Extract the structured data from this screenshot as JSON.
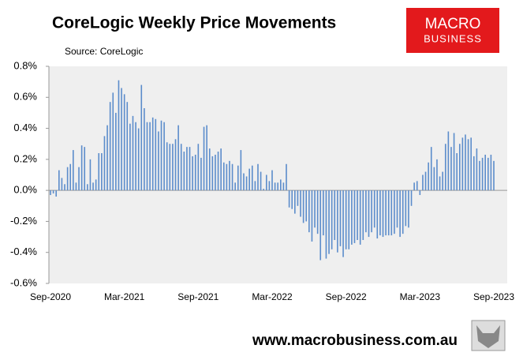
{
  "chart_data": {
    "type": "bar",
    "title": "CoreLogic Weekly Price Movements",
    "subtitle": "Source: CoreLogic",
    "categories": [
      "Sep-2020",
      null,
      null,
      null,
      null,
      null,
      null,
      null,
      null,
      null,
      null,
      null,
      null,
      null,
      null,
      null,
      null,
      null,
      null,
      null,
      null,
      null,
      null,
      null,
      null,
      null,
      "Mar-2021",
      null,
      null,
      null,
      null,
      null,
      null,
      null,
      null,
      null,
      null,
      null,
      null,
      null,
      null,
      null,
      null,
      null,
      null,
      null,
      null,
      null,
      null,
      null,
      null,
      null,
      "Sep-2021",
      null,
      null,
      null,
      null,
      null,
      null,
      null,
      null,
      null,
      null,
      null,
      null,
      null,
      null,
      null,
      null,
      null,
      null,
      null,
      null,
      null,
      null,
      null,
      null,
      null,
      "Mar-2022",
      null,
      null,
      null,
      null,
      null,
      null,
      null,
      null,
      null,
      null,
      null,
      null,
      null,
      null,
      null,
      null,
      null,
      null,
      null,
      null,
      null,
      null,
      null,
      null,
      null,
      "Sep-2022",
      null,
      null,
      null,
      null,
      null,
      null,
      null,
      null,
      null,
      null,
      null,
      null,
      null,
      null,
      null,
      null,
      null,
      null,
      null,
      null,
      null,
      null,
      null,
      null,
      null,
      "Mar-2023",
      null,
      null,
      null,
      null,
      null,
      null,
      null,
      null,
      null,
      null,
      null,
      null,
      null,
      null,
      null,
      null,
      null,
      null,
      null,
      null,
      null,
      null,
      null,
      null,
      null,
      "Sep-2023"
    ],
    "values": [
      -0.03,
      -0.02,
      -0.04,
      0.13,
      0.08,
      0.04,
      0.15,
      0.17,
      0.26,
      0.05,
      0.15,
      0.29,
      0.28,
      0.04,
      0.2,
      0.05,
      0.07,
      0.24,
      0.24,
      0.35,
      0.42,
      0.57,
      0.63,
      0.5,
      0.71,
      0.66,
      0.62,
      0.57,
      0.43,
      0.48,
      0.44,
      0.4,
      0.68,
      0.53,
      0.44,
      0.44,
      0.47,
      0.46,
      0.38,
      0.45,
      0.44,
      0.31,
      0.3,
      0.3,
      0.33,
      0.42,
      0.3,
      0.25,
      0.28,
      0.28,
      0.22,
      0.23,
      0.3,
      0.21,
      0.41,
      0.42,
      0.27,
      0.22,
      0.23,
      0.25,
      0.27,
      0.18,
      0.17,
      0.19,
      0.17,
      0.05,
      0.16,
      0.26,
      0.11,
      0.09,
      0.14,
      0.16,
      0.06,
      0.17,
      0.12,
      0.01,
      0.1,
      0.06,
      0.13,
      0.05,
      0.05,
      0.07,
      0.05,
      0.17,
      -0.11,
      -0.12,
      -0.15,
      -0.1,
      -0.17,
      -0.21,
      -0.2,
      -0.27,
      -0.33,
      -0.24,
      -0.28,
      -0.45,
      -0.29,
      -0.44,
      -0.41,
      -0.38,
      -0.32,
      -0.4,
      -0.36,
      -0.43,
      -0.38,
      -0.38,
      -0.35,
      -0.34,
      -0.32,
      -0.35,
      -0.32,
      -0.27,
      -0.3,
      -0.27,
      -0.24,
      -0.31,
      -0.29,
      -0.3,
      -0.29,
      -0.29,
      -0.29,
      -0.28,
      -0.24,
      -0.3,
      -0.28,
      -0.23,
      -0.24,
      -0.1,
      0.05,
      0.06,
      -0.03,
      0.1,
      0.12,
      0.18,
      0.28,
      0.15,
      0.2,
      0.09,
      0.12,
      0.3,
      0.38,
      0.28,
      0.37,
      0.24,
      0.3,
      0.34,
      0.36,
      0.33,
      0.34,
      0.22,
      0.27,
      0.19,
      0.21,
      0.23,
      0.21,
      0.23,
      0.19
    ],
    "color": "#5b8ccb",
    "ylim": [
      -0.6,
      0.8
    ],
    "yticks": [
      {
        "value": -0.6,
        "label": "-0.6%"
      },
      {
        "value": -0.4,
        "label": "-0.4%"
      },
      {
        "value": -0.2,
        "label": "-0.2%"
      },
      {
        "value": 0,
        "label": "0.0%"
      },
      {
        "value": 0.2,
        "label": "0.2%"
      },
      {
        "value": 0.4,
        "label": "0.4%"
      },
      {
        "value": 0.6,
        "label": "0.6%"
      },
      {
        "value": 0.8,
        "label": "0.8%"
      }
    ]
  },
  "logo": [
    "MACRO",
    "BUSINESS"
  ],
  "website": "www.macrobusiness.com.au"
}
